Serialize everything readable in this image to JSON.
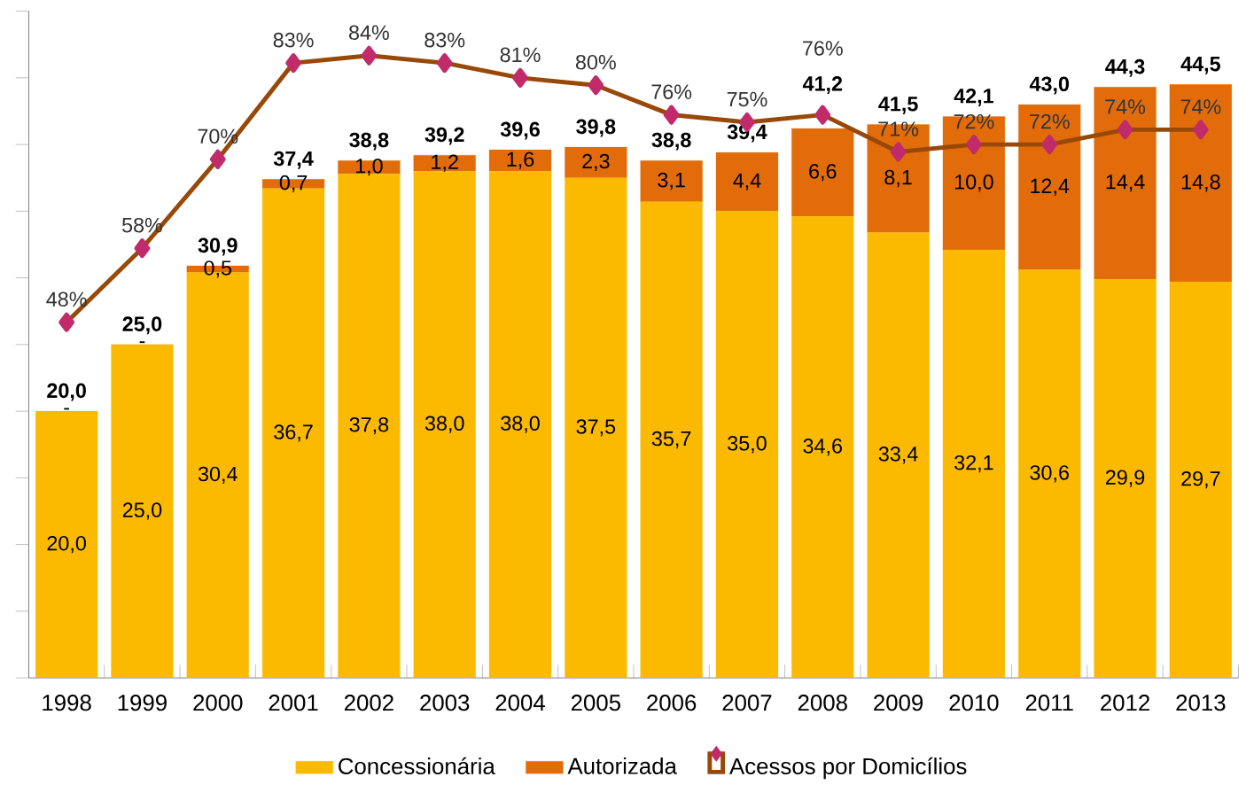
{
  "chart_data": {
    "type": "bar",
    "stacked": true,
    "categories": [
      "1998",
      "1999",
      "2000",
      "2001",
      "2002",
      "2003",
      "2004",
      "2005",
      "2006",
      "2007",
      "2008",
      "2009",
      "2010",
      "2011",
      "2012",
      "2013"
    ],
    "series": [
      {
        "name": "Concessionária",
        "color": "#fbba00",
        "values": [
          20.0,
          25.0,
          30.4,
          36.7,
          37.8,
          38.0,
          38.0,
          37.5,
          35.7,
          35.0,
          34.6,
          33.4,
          32.1,
          30.6,
          29.9,
          29.7
        ],
        "value_labels": [
          "20,0",
          "25,0",
          "30,4",
          "36,7",
          "37,8",
          "38,0",
          "38,0",
          "37,5",
          "35,7",
          "35,0",
          "34,6",
          "33,4",
          "32,1",
          "30,6",
          "29,9",
          "29,7"
        ]
      },
      {
        "name": "Autorizada",
        "color": "#e36c0a",
        "values": [
          0,
          0,
          0.5,
          0.7,
          1.0,
          1.2,
          1.6,
          2.3,
          3.1,
          4.4,
          6.6,
          8.1,
          10.0,
          12.4,
          14.4,
          14.8
        ],
        "value_labels": [
          "-",
          "-",
          "0,5",
          "0,7",
          "1,0",
          "1,2",
          "1,6",
          "2,3",
          "3,1",
          "4,4",
          "6,6",
          "8,1",
          "10,0",
          "12,4",
          "14,4",
          "14,8"
        ]
      },
      {
        "name": "Acessos por Domicílios",
        "type": "line",
        "axis": "y2",
        "color": "#984807",
        "marker": "diamond",
        "values": [
          48,
          58,
          70,
          83,
          84,
          83,
          81,
          80,
          76,
          75,
          76,
          71,
          72,
          72,
          74,
          74
        ],
        "value_labels": [
          "48%",
          "58%",
          "70%",
          "83%",
          "84%",
          "83%",
          "81%",
          "80%",
          "76%",
          "75%",
          "76%",
          "71%",
          "72%",
          "72%",
          "74%",
          "74%"
        ]
      }
    ],
    "totals": [
      "20,0",
      "25,0",
      "30,9",
      "37,4",
      "38,8",
      "39,2",
      "39,6",
      "39,8",
      "38,8",
      "39,4",
      "41,2",
      "41,5",
      "42,1",
      "43,0",
      "44,3",
      "44,5"
    ],
    "ylim": [
      0,
      50
    ],
    "yticks": [
      {
        "value": 0,
        "label": null
      },
      {
        "value": 5,
        "label": null
      },
      {
        "value": 10,
        "label": null
      },
      {
        "value": 15,
        "label": null
      },
      {
        "value": 20,
        "label": null
      },
      {
        "value": 25,
        "label": null
      },
      {
        "value": 30,
        "label": null
      },
      {
        "value": 35,
        "label": null
      },
      {
        "value": 40,
        "label": null
      },
      {
        "value": 45,
        "label": null
      },
      {
        "value": 50,
        "label": null
      }
    ],
    "y2lim": [
      0,
      90
    ],
    "tick_labels": "x",
    "legend": "bottom"
  }
}
